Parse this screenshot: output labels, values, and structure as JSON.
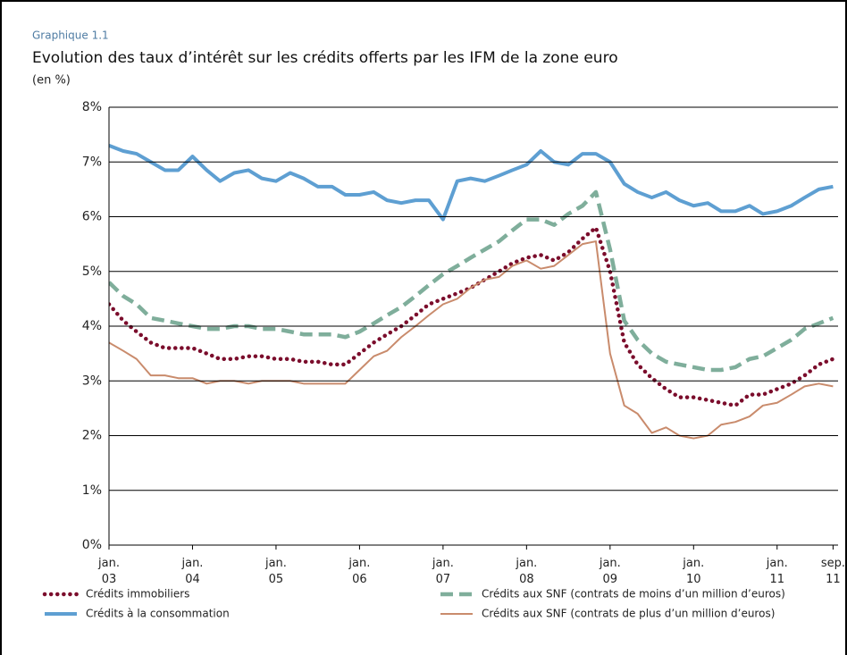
{
  "chart_data": {
    "type": "line",
    "kicker": "Graphique 1.1",
    "title": "Evolution des taux d’intérêt sur les crédits offerts par les IFM de la zone euro",
    "subtitle": "(en %)",
    "x": [
      2003,
      2003.17,
      2003.33,
      2003.5,
      2003.67,
      2003.83,
      2004,
      2004.17,
      2004.33,
      2004.5,
      2004.67,
      2004.83,
      2005,
      2005.17,
      2005.33,
      2005.5,
      2005.67,
      2005.83,
      2006,
      2006.17,
      2006.33,
      2006.5,
      2006.67,
      2006.83,
      2007,
      2007.17,
      2007.33,
      2007.5,
      2007.67,
      2007.83,
      2008,
      2008.17,
      2008.33,
      2008.5,
      2008.67,
      2008.83,
      2009,
      2009.17,
      2009.33,
      2009.5,
      2009.67,
      2009.83,
      2010,
      2010.17,
      2010.33,
      2010.5,
      2010.67,
      2010.83,
      2011,
      2011.17,
      2011.33,
      2011.5,
      2011.67
    ],
    "series": [
      {
        "name": "Crédits immobiliers",
        "color": "#7b0d2c",
        "style": "dotted",
        "values": [
          4.4,
          4.1,
          3.9,
          3.7,
          3.6,
          3.6,
          3.6,
          3.5,
          3.4,
          3.4,
          3.45,
          3.45,
          3.4,
          3.4,
          3.35,
          3.35,
          3.3,
          3.3,
          3.5,
          3.7,
          3.85,
          4.0,
          4.2,
          4.4,
          4.5,
          4.6,
          4.7,
          4.85,
          5.0,
          5.15,
          5.25,
          5.3,
          5.2,
          5.35,
          5.6,
          5.8,
          5.0,
          3.7,
          3.3,
          3.05,
          2.85,
          2.7,
          2.7,
          2.65,
          2.6,
          2.55,
          2.75,
          2.75,
          2.85,
          2.95,
          3.1,
          3.3,
          3.4
        ]
      },
      {
        "name": "Crédits à la consommation",
        "color": "#5e9fd2",
        "style": "solid",
        "values": [
          7.3,
          7.2,
          7.15,
          7.0,
          6.85,
          6.85,
          7.1,
          6.85,
          6.65,
          6.8,
          6.85,
          6.7,
          6.65,
          6.8,
          6.7,
          6.55,
          6.55,
          6.4,
          6.4,
          6.45,
          6.3,
          6.25,
          6.3,
          6.3,
          5.95,
          6.65,
          6.7,
          6.65,
          6.75,
          6.85,
          6.95,
          7.2,
          7.0,
          6.95,
          7.15,
          7.15,
          7.0,
          6.6,
          6.45,
          6.35,
          6.45,
          6.3,
          6.2,
          6.25,
          6.1,
          6.1,
          6.2,
          6.05,
          6.1,
          6.2,
          6.35,
          6.5,
          6.55
        ]
      },
      {
        "name": "Crédits aux SNF (contrats de moins d’un million d’euros)",
        "color": "#7fae9b",
        "style": "dashed",
        "values": [
          4.8,
          4.55,
          4.4,
          4.15,
          4.1,
          4.05,
          4.0,
          3.95,
          3.95,
          4.0,
          4.0,
          3.95,
          3.95,
          3.9,
          3.85,
          3.85,
          3.85,
          3.8,
          3.9,
          4.05,
          4.2,
          4.35,
          4.55,
          4.75,
          4.95,
          5.1,
          5.25,
          5.4,
          5.55,
          5.75,
          5.95,
          5.95,
          5.85,
          6.05,
          6.2,
          6.45,
          5.4,
          4.1,
          3.75,
          3.5,
          3.35,
          3.3,
          3.25,
          3.2,
          3.2,
          3.25,
          3.4,
          3.45,
          3.6,
          3.75,
          3.95,
          4.05,
          4.15
        ]
      },
      {
        "name": "Crédits aux SNF (contrats de plus d’un million d’euros)",
        "color": "#c98b6c",
        "style": "solid",
        "values": [
          3.7,
          3.55,
          3.4,
          3.1,
          3.1,
          3.05,
          3.05,
          2.95,
          3.0,
          3.0,
          2.95,
          3.0,
          3.0,
          3.0,
          2.95,
          2.95,
          2.95,
          2.95,
          3.2,
          3.45,
          3.55,
          3.8,
          4.0,
          4.2,
          4.4,
          4.5,
          4.7,
          4.85,
          4.9,
          5.1,
          5.2,
          5.05,
          5.1,
          5.3,
          5.5,
          5.55,
          3.5,
          2.55,
          2.4,
          2.05,
          2.15,
          2.0,
          1.95,
          2.0,
          2.2,
          2.25,
          2.35,
          2.55,
          2.6,
          2.75,
          2.9,
          2.95,
          2.9
        ]
      }
    ],
    "xlim": [
      2003,
      2011.73
    ],
    "xticks": [
      {
        "value": 2003,
        "label": "jan. 03"
      },
      {
        "value": 2004,
        "label": "jan. 04"
      },
      {
        "value": 2005,
        "label": "jan. 05"
      },
      {
        "value": 2006,
        "label": "jan. 06"
      },
      {
        "value": 2007,
        "label": "jan. 07"
      },
      {
        "value": 2008,
        "label": "jan. 08"
      },
      {
        "value": 2009,
        "label": "jan. 09"
      },
      {
        "value": 2010,
        "label": "jan. 10"
      },
      {
        "value": 2011,
        "label": "jan. 11"
      },
      {
        "value": 2011.67,
        "label": "sep. 11"
      }
    ],
    "ylim": [
      0,
      8
    ],
    "yticks": [
      {
        "value": 0,
        "label": "0%"
      },
      {
        "value": 1,
        "label": "1%"
      },
      {
        "value": 2,
        "label": "2%"
      },
      {
        "value": 3,
        "label": "3%"
      },
      {
        "value": 4,
        "label": "4%"
      },
      {
        "value": 5,
        "label": "5%"
      },
      {
        "value": 6,
        "label": "6%"
      },
      {
        "value": 7,
        "label": "7%"
      },
      {
        "value": 8,
        "label": "8%"
      }
    ],
    "grid": true
  }
}
